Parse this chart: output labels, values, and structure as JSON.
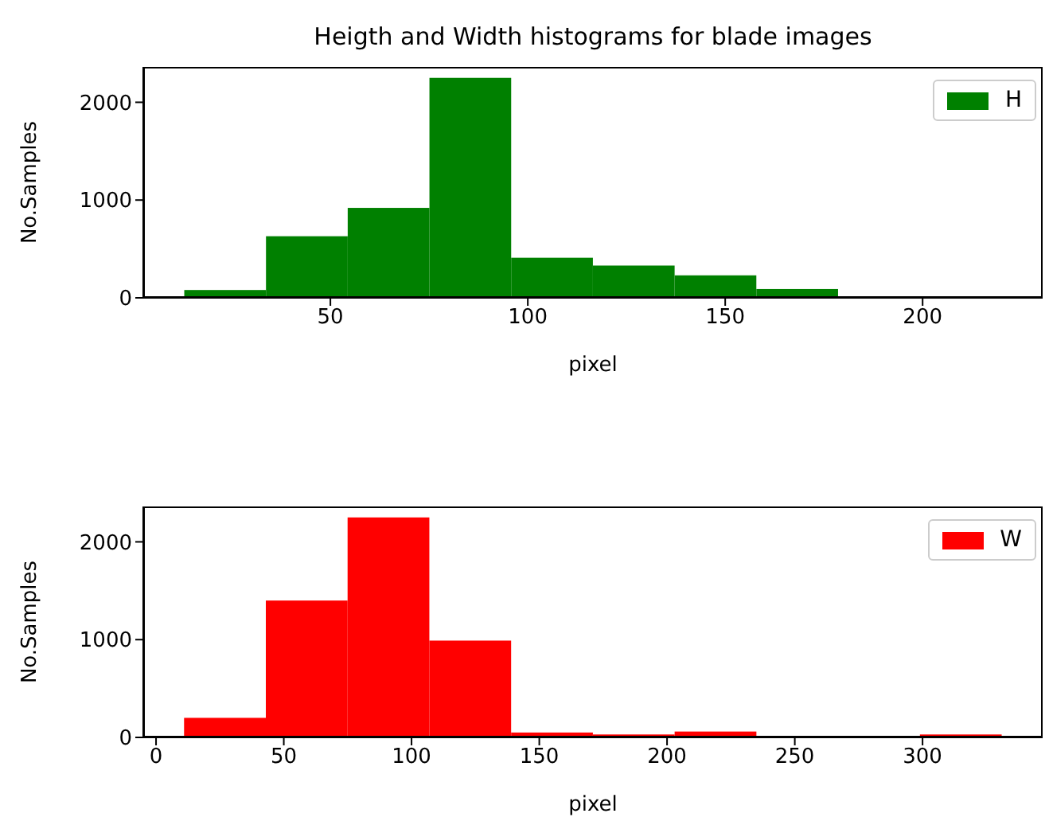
{
  "chart_data": [
    {
      "type": "histogram",
      "title": "Heigth and Width histograms for blade images",
      "xlabel": "pixel",
      "ylabel": "No.Samples",
      "bins": [
        13,
        33.7,
        54.4,
        75.1,
        95.8,
        116.5,
        137.2,
        157.9,
        178.6,
        199.3,
        220
      ],
      "series": [
        {
          "name": "H",
          "color": "#008000",
          "values": [
            80,
            630,
            920,
            2250,
            410,
            330,
            230,
            90,
            0,
            0
          ]
        }
      ],
      "xlim": [
        2.6,
        230.4
      ],
      "xticks": [
        50,
        100,
        150,
        200
      ],
      "ylim": [
        0,
        2362
      ],
      "yticks": [
        0,
        1000,
        2000
      ],
      "legend": "top right",
      "grid": false
    },
    {
      "type": "histogram",
      "xlabel": "pixel",
      "ylabel": "No.Samples",
      "bins": [
        11,
        43,
        75,
        107,
        139,
        171,
        203,
        235,
        267,
        299,
        331
      ],
      "series": [
        {
          "name": "W",
          "color": "#ff0000",
          "values": [
            200,
            1400,
            2250,
            990,
            50,
            30,
            60,
            0,
            0,
            30
          ]
        }
      ],
      "xlim": [
        -5,
        347
      ],
      "xticks": [
        0,
        50,
        100,
        150,
        200,
        250,
        300
      ],
      "ylim": [
        0,
        2362
      ],
      "yticks": [
        0,
        1000,
        2000
      ],
      "legend": "top right",
      "grid": false
    }
  ]
}
